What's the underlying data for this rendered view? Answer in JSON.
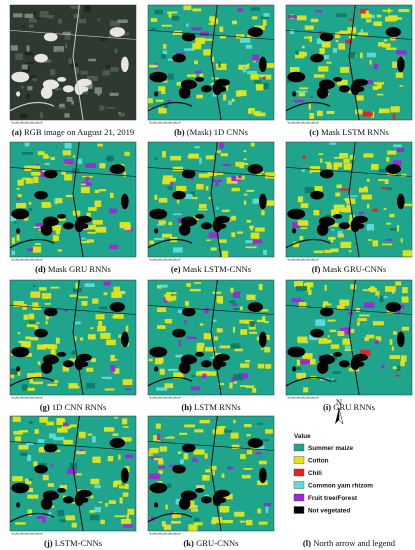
{
  "panels": [
    {
      "label": "(a)",
      "text": "RGB image on August 21, 2019"
    },
    {
      "label": "(b)",
      "text": "(Mask) 1D CNNs"
    },
    {
      "label": "(c)",
      "text": "Mask LSTM RNNs"
    },
    {
      "label": "(d)",
      "text": "Mask GRU RNNs"
    },
    {
      "label": "(e)",
      "text": "Mask LSTM-CNNs"
    },
    {
      "label": "(f)",
      "text": "Mask GRU-CNNs"
    },
    {
      "label": "(g)",
      "text": "1D CNN RNNs"
    },
    {
      "label": "(h)",
      "text": "LSTM RNNs"
    },
    {
      "label": "(i)",
      "text": "GRU RNNs"
    },
    {
      "label": "(j)",
      "text": "LSTM-CNNs"
    },
    {
      "label": "(k)",
      "text": "GRU-CNNs"
    },
    {
      "label": "(l)",
      "text": "North arrow and legend"
    }
  ],
  "north": "N",
  "legend": {
    "title": "Value",
    "items": [
      {
        "name": "Summer maize",
        "color": "#1fa58c"
      },
      {
        "name": "Cotton",
        "color": "#e4e41a"
      },
      {
        "name": "Chili",
        "color": "#e8231c"
      },
      {
        "name": "Common yam rhizom",
        "color": "#62dcd8"
      },
      {
        "name": "Fruit tree/Forest",
        "color": "#a125d8"
      },
      {
        "name": "Not vegetated",
        "color": "#000000"
      }
    ]
  }
}
